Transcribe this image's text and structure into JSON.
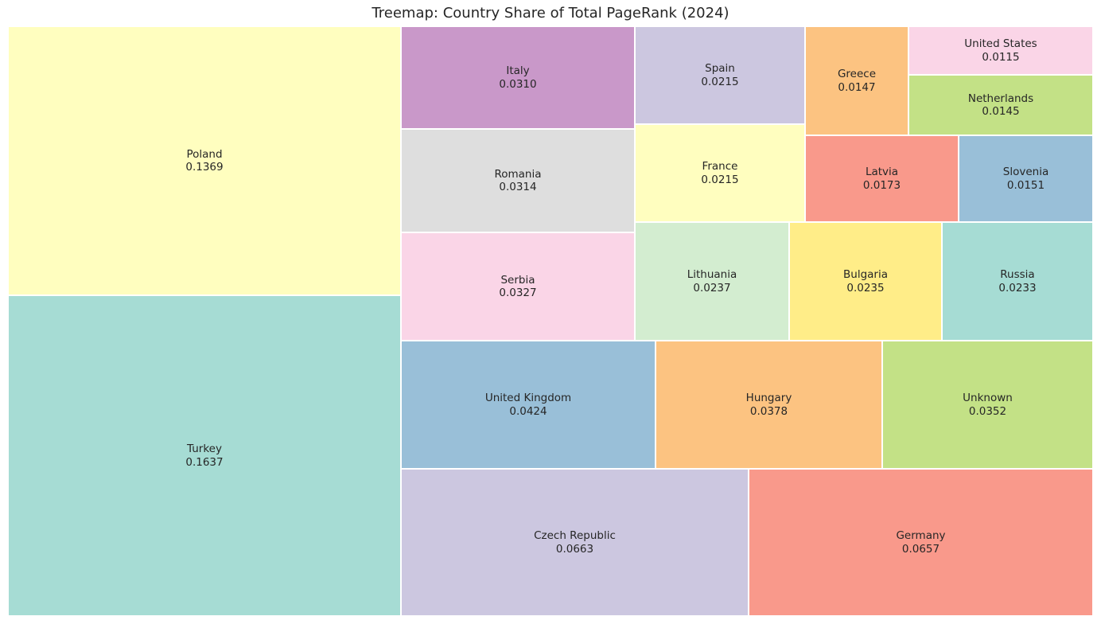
{
  "chart_data": {
    "type": "treemap",
    "title": "Treemap: Country Share of Total PageRank (2024)",
    "items": [
      {
        "label": "Turkey",
        "value": 0.1637,
        "display": "0.1637",
        "color": "#a6dcd4"
      },
      {
        "label": "Poland",
        "value": 0.1369,
        "display": "0.1369",
        "color": "#fffebf"
      },
      {
        "label": "Czech Republic",
        "value": 0.0663,
        "display": "0.0663",
        "color": "#ccc7e0"
      },
      {
        "label": "Germany",
        "value": 0.0657,
        "display": "0.0657",
        "color": "#f9998b"
      },
      {
        "label": "United Kingdom",
        "value": 0.0424,
        "display": "0.0424",
        "color": "#99bfd8"
      },
      {
        "label": "Hungary",
        "value": 0.0378,
        "display": "0.0378",
        "color": "#fcc381"
      },
      {
        "label": "Unknown",
        "value": 0.0352,
        "display": "0.0352",
        "color": "#c3e186"
      },
      {
        "label": "Serbia",
        "value": 0.0327,
        "display": "0.0327",
        "color": "#fad5e7"
      },
      {
        "label": "Romania",
        "value": 0.0314,
        "display": "0.0314",
        "color": "#dedede"
      },
      {
        "label": "Italy",
        "value": 0.031,
        "display": "0.0310",
        "color": "#c998c9"
      },
      {
        "label": "Lithuania",
        "value": 0.0237,
        "display": "0.0237",
        "color": "#d3edd0"
      },
      {
        "label": "Bulgaria",
        "value": 0.0235,
        "display": "0.0235",
        "color": "#ffed88"
      },
      {
        "label": "Russia",
        "value": 0.0233,
        "display": "0.0233",
        "color": "#a6dcd4"
      },
      {
        "label": "France",
        "value": 0.0215,
        "display": "0.0215",
        "color": "#fffebf"
      },
      {
        "label": "Spain",
        "value": 0.0215,
        "display": "0.0215",
        "color": "#ccc7e0"
      },
      {
        "label": "Latvia",
        "value": 0.0173,
        "display": "0.0173",
        "color": "#f9998b"
      },
      {
        "label": "Slovenia",
        "value": 0.0151,
        "display": "0.0151",
        "color": "#99bfd8"
      },
      {
        "label": "Greece",
        "value": 0.0147,
        "display": "0.0147",
        "color": "#fcc381"
      },
      {
        "label": "Netherlands",
        "value": 0.0145,
        "display": "0.0145",
        "color": "#c3e186"
      },
      {
        "label": "United States",
        "value": 0.0115,
        "display": "0.0115",
        "color": "#fad5e7"
      }
    ]
  }
}
